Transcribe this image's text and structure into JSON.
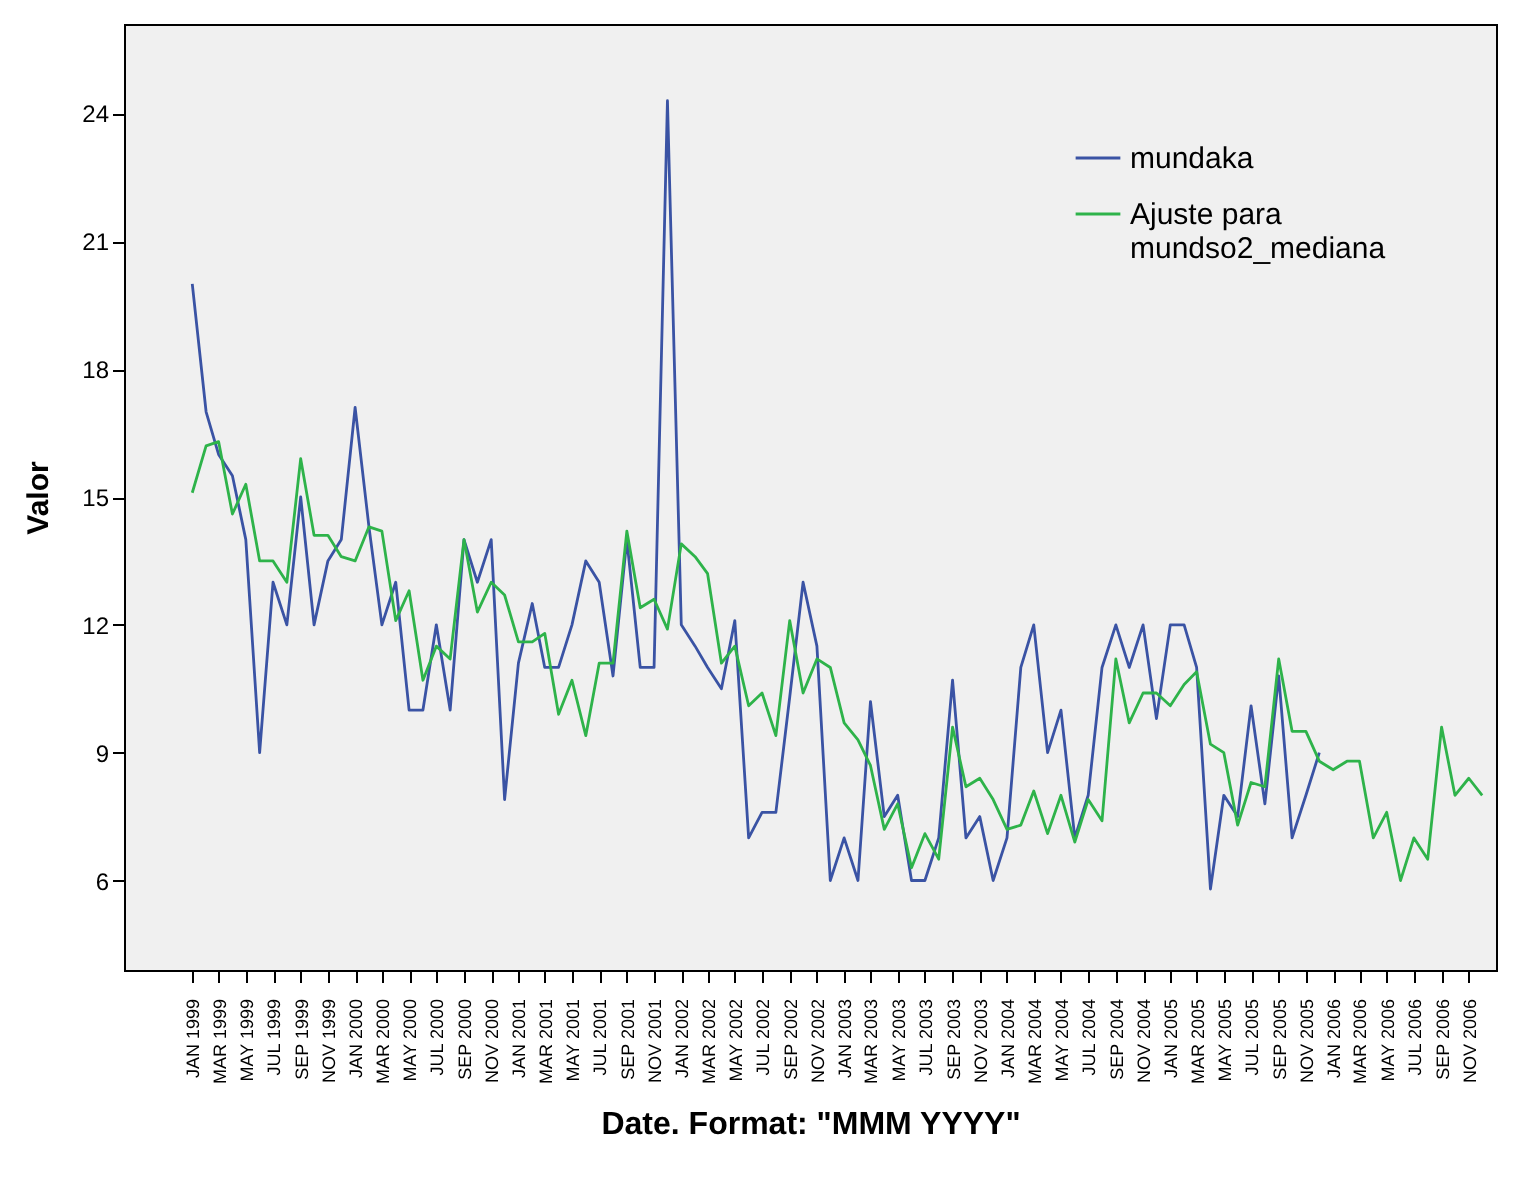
{
  "chart_data": {
    "type": "line",
    "xlabel": "Date.  Format:  \"MMM YYYY\"",
    "ylabel": "Valor",
    "x": [
      "1999-01",
      "1999-02",
      "1999-03",
      "1999-04",
      "1999-05",
      "1999-06",
      "1999-07",
      "1999-08",
      "1999-09",
      "1999-10",
      "1999-11",
      "1999-12",
      "2000-01",
      "2000-02",
      "2000-03",
      "2000-04",
      "2000-05",
      "2000-06",
      "2000-07",
      "2000-08",
      "2000-09",
      "2000-10",
      "2000-11",
      "2000-12",
      "2001-01",
      "2001-02",
      "2001-03",
      "2001-04",
      "2001-05",
      "2001-06",
      "2001-07",
      "2001-08",
      "2001-09",
      "2001-10",
      "2001-11",
      "2001-12",
      "2002-01",
      "2002-02",
      "2002-03",
      "2002-04",
      "2002-05",
      "2002-06",
      "2002-07",
      "2002-08",
      "2002-09",
      "2002-10",
      "2002-11",
      "2002-12",
      "2003-01",
      "2003-02",
      "2003-03",
      "2003-04",
      "2003-05",
      "2003-06",
      "2003-07",
      "2003-08",
      "2003-09",
      "2003-10",
      "2003-11",
      "2003-12",
      "2004-01",
      "2004-02",
      "2004-03",
      "2004-04",
      "2004-05",
      "2004-06",
      "2004-07",
      "2004-08",
      "2004-09",
      "2004-10",
      "2004-11",
      "2004-12",
      "2005-01",
      "2005-02",
      "2005-03",
      "2005-04",
      "2005-05",
      "2005-06",
      "2005-07",
      "2005-08",
      "2005-09",
      "2005-10",
      "2005-11",
      "2005-12",
      "2006-01",
      "2006-02",
      "2006-03",
      "2006-04",
      "2006-05",
      "2006-06",
      "2006-07",
      "2006-08",
      "2006-09",
      "2006-10",
      "2006-11",
      "2006-12"
    ],
    "series": [
      {
        "name": "mundaka",
        "color": "#3a53a4",
        "values": [
          20.0,
          17.0,
          16.0,
          15.5,
          14.0,
          9.0,
          13.0,
          12.0,
          15.0,
          12.0,
          13.5,
          14.0,
          17.1,
          14.3,
          12.0,
          13.0,
          10.0,
          10.0,
          12.0,
          10.0,
          14.0,
          13.0,
          14.0,
          7.9,
          11.1,
          12.5,
          11.0,
          11.0,
          12.0,
          13.5,
          13.0,
          10.8,
          14.0,
          11.0,
          11.0,
          24.3,
          12.0,
          11.5,
          11.0,
          10.5,
          12.1,
          7.0,
          7.6,
          7.6,
          10.3,
          13.0,
          11.5,
          6.0,
          7.0,
          6.0,
          10.2,
          7.5,
          8.0,
          6.0,
          6.0,
          7.0,
          10.7,
          7.0,
          7.5,
          6.0,
          7.0,
          11.0,
          12.0,
          9.0,
          10.0,
          7.0,
          8.0,
          11.0,
          12.0,
          11.0,
          12.0,
          9.8,
          12.0,
          12.0,
          11.0,
          5.8,
          8.0,
          7.5,
          10.1,
          7.8,
          10.8,
          7.0,
          8.0,
          9.0,
          null,
          null,
          null,
          null,
          null,
          null,
          null,
          null,
          null,
          null,
          null,
          null
        ]
      },
      {
        "name": "Ajuste para\nmundso2_mediana",
        "color": "#2eb34a",
        "values": [
          15.1,
          16.2,
          16.3,
          14.6,
          15.3,
          13.5,
          13.5,
          13.0,
          15.9,
          14.1,
          14.1,
          13.6,
          13.5,
          14.3,
          14.2,
          12.1,
          12.8,
          10.7,
          11.5,
          11.2,
          14.0,
          12.3,
          13.0,
          12.7,
          11.6,
          11.6,
          11.8,
          9.9,
          10.7,
          9.4,
          11.1,
          11.1,
          14.2,
          12.4,
          12.6,
          11.9,
          13.9,
          13.6,
          13.2,
          11.1,
          11.5,
          10.1,
          10.4,
          9.4,
          12.1,
          10.4,
          11.2,
          11.0,
          9.7,
          9.3,
          8.7,
          7.2,
          7.8,
          6.3,
          7.1,
          6.5,
          9.6,
          8.2,
          8.4,
          7.9,
          7.2,
          7.3,
          8.1,
          7.1,
          8.0,
          6.9,
          7.9,
          7.4,
          11.2,
          9.7,
          10.4,
          10.4,
          10.1,
          10.6,
          10.9,
          9.2,
          9.0,
          7.3,
          8.3,
          8.2,
          11.2,
          9.5,
          9.5,
          8.8,
          8.6,
          8.8,
          8.8,
          7.0,
          7.6,
          6.0,
          7.0,
          6.5,
          9.6,
          8.0,
          8.4,
          8.0
        ]
      }
    ],
    "xlim": [
      "1998-08",
      "2007-01"
    ],
    "xticks": [
      {
        "value": "1999-01",
        "label": "JAN 1999"
      },
      {
        "value": "1999-03",
        "label": "MAR 1999"
      },
      {
        "value": "1999-05",
        "label": "MAY 1999"
      },
      {
        "value": "1999-07",
        "label": "JUL 1999"
      },
      {
        "value": "1999-09",
        "label": "SEP 1999"
      },
      {
        "value": "1999-11",
        "label": "NOV 1999"
      },
      {
        "value": "2000-01",
        "label": "JAN 2000"
      },
      {
        "value": "2000-03",
        "label": "MAR 2000"
      },
      {
        "value": "2000-05",
        "label": "MAY 2000"
      },
      {
        "value": "2000-07",
        "label": "JUL 2000"
      },
      {
        "value": "2000-09",
        "label": "SEP 2000"
      },
      {
        "value": "2000-11",
        "label": "NOV 2000"
      },
      {
        "value": "2001-01",
        "label": "JAN 2001"
      },
      {
        "value": "2001-03",
        "label": "MAR 2001"
      },
      {
        "value": "2001-05",
        "label": "MAY 2001"
      },
      {
        "value": "2001-07",
        "label": "JUL 2001"
      },
      {
        "value": "2001-09",
        "label": "SEP 2001"
      },
      {
        "value": "2001-11",
        "label": "NOV 2001"
      },
      {
        "value": "2002-01",
        "label": "JAN 2002"
      },
      {
        "value": "2002-03",
        "label": "MAR 2002"
      },
      {
        "value": "2002-05",
        "label": "MAY 2002"
      },
      {
        "value": "2002-07",
        "label": "JUL 2002"
      },
      {
        "value": "2002-09",
        "label": "SEP 2002"
      },
      {
        "value": "2002-11",
        "label": "NOV 2002"
      },
      {
        "value": "2003-01",
        "label": "JAN 2003"
      },
      {
        "value": "2003-03",
        "label": "MAR 2003"
      },
      {
        "value": "2003-05",
        "label": "MAY 2003"
      },
      {
        "value": "2003-07",
        "label": "JUL 2003"
      },
      {
        "value": "2003-09",
        "label": "SEP 2003"
      },
      {
        "value": "2003-11",
        "label": "NOV 2003"
      },
      {
        "value": "2004-01",
        "label": "JAN 2004"
      },
      {
        "value": "2004-03",
        "label": "MAR 2004"
      },
      {
        "value": "2004-05",
        "label": "MAY 2004"
      },
      {
        "value": "2004-07",
        "label": "JUL 2004"
      },
      {
        "value": "2004-09",
        "label": "SEP 2004"
      },
      {
        "value": "2004-11",
        "label": "NOV 2004"
      },
      {
        "value": "2005-01",
        "label": "JAN 2005"
      },
      {
        "value": "2005-03",
        "label": "MAR 2005"
      },
      {
        "value": "2005-05",
        "label": "MAY 2005"
      },
      {
        "value": "2005-07",
        "label": "JUL 2005"
      },
      {
        "value": "2005-09",
        "label": "SEP 2005"
      },
      {
        "value": "2005-11",
        "label": "NOV 2005"
      },
      {
        "value": "2006-01",
        "label": "JAN 2006"
      },
      {
        "value": "2006-03",
        "label": "MAR 2006"
      },
      {
        "value": "2006-05",
        "label": "MAY 2006"
      },
      {
        "value": "2006-07",
        "label": "JUL 2006"
      },
      {
        "value": "2006-09",
        "label": "SEP 2006"
      },
      {
        "value": "2006-11",
        "label": "NOV 2006"
      }
    ],
    "ylim": [
      3.9,
      26.1
    ],
    "yticks": [
      6,
      9,
      12,
      15,
      18,
      21,
      24
    ],
    "legend": "top right",
    "grid": false
  }
}
